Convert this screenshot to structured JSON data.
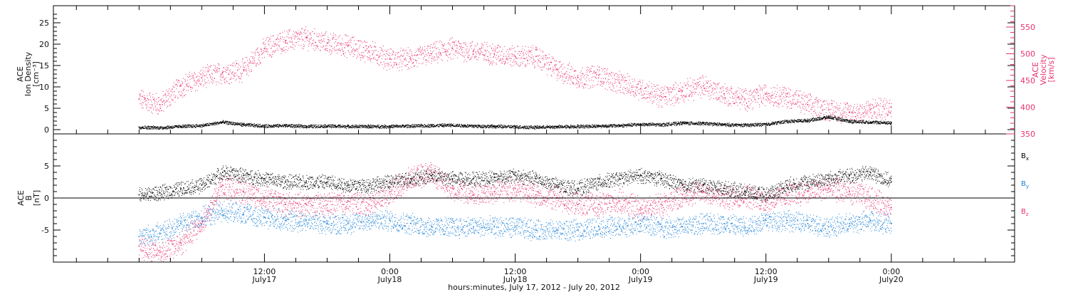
{
  "figure": {
    "xlabel": "hours:minutes, July 17, 2012 - July 20, 2012",
    "xticks": [
      {
        "hours": 12,
        "time": "12:00",
        "date": "July17"
      },
      {
        "hours": 24,
        "time": "0:00",
        "date": "July18"
      },
      {
        "hours": 36,
        "time": "12:00",
        "date": "July18"
      },
      {
        "hours": 48,
        "time": "0:00",
        "date": "July19"
      },
      {
        "hours": 60,
        "time": "12:00",
        "date": "July19"
      },
      {
        "hours": 72,
        "time": "0:00",
        "date": "July20"
      }
    ]
  },
  "chart_data": [
    {
      "type": "scatter",
      "title": "",
      "xlabel": "hours:minutes, July 17, 2012 - July 20, 2012",
      "ylabel": [
        "ACE",
        "Ion Density",
        "[cm⁻³]"
      ],
      "ylim": [
        -1,
        29
      ],
      "yticks": [
        0,
        5,
        10,
        15,
        20,
        25
      ],
      "y2label": [
        "ACE",
        "Velocity",
        "[km/s]"
      ],
      "y2lim": [
        350,
        590
      ],
      "y2ticks": [
        350,
        400,
        450,
        500,
        550
      ],
      "x_unit": "hours since July 17, 2012 00:00",
      "series": [
        {
          "name": "Ion Density",
          "axis": "left",
          "color": "#000000",
          "x": [
            0,
            2,
            4,
            6,
            8,
            10,
            12,
            14,
            16,
            18,
            20,
            22,
            24,
            26,
            28,
            30,
            32,
            34,
            36,
            38,
            40,
            42,
            44,
            46,
            48,
            50,
            52,
            54,
            56,
            58,
            60,
            62,
            64,
            66,
            68,
            70,
            72
          ],
          "y": [
            0.6,
            0.5,
            0.8,
            1.0,
            1.8,
            1.2,
            0.9,
            1.0,
            0.8,
            0.9,
            0.8,
            0.8,
            0.8,
            0.9,
            1.0,
            1.1,
            0.9,
            0.8,
            0.7,
            0.6,
            0.7,
            0.8,
            0.9,
            1.0,
            1.3,
            1.2,
            1.6,
            1.5,
            1.2,
            1.1,
            1.3,
            2.0,
            2.2,
            3.0,
            2.0,
            1.8,
            1.6
          ]
        },
        {
          "name": "Velocity",
          "axis": "right",
          "color": "#e8316c",
          "x": [
            0,
            2,
            4,
            6,
            8,
            10,
            12,
            14,
            16,
            18,
            20,
            22,
            24,
            26,
            28,
            30,
            32,
            34,
            36,
            38,
            40,
            42,
            44,
            46,
            48,
            50,
            52,
            54,
            56,
            58,
            60,
            62,
            64,
            66,
            68,
            70,
            72
          ],
          "y": [
            415,
            405,
            440,
            455,
            465,
            470,
            510,
            525,
            530,
            520,
            515,
            505,
            490,
            490,
            500,
            510,
            505,
            500,
            495,
            495,
            470,
            455,
            460,
            445,
            435,
            420,
            430,
            440,
            425,
            415,
            425,
            420,
            405,
            395,
            390,
            395,
            400
          ]
        }
      ]
    },
    {
      "type": "scatter",
      "title": "",
      "xlabel": "hours:minutes, July 17, 2012 - July 20, 2012",
      "ylabel": [
        "ACE",
        "B",
        "[nT]"
      ],
      "ylim": [
        -10,
        10
      ],
      "yticks": [
        -5,
        0,
        5
      ],
      "zero_line": true,
      "legend_position": "right",
      "series": [
        {
          "name": "B",
          "subscript": "x",
          "color": "#000000",
          "x": [
            0,
            2,
            4,
            6,
            8,
            10,
            12,
            14,
            16,
            18,
            20,
            22,
            24,
            26,
            28,
            30,
            32,
            34,
            36,
            38,
            40,
            42,
            44,
            46,
            48,
            50,
            52,
            54,
            56,
            58,
            60,
            62,
            64,
            66,
            68,
            70,
            72
          ],
          "y": [
            0.5,
            0.8,
            1.5,
            2.0,
            4.0,
            3.5,
            3.0,
            2.5,
            2.5,
            2.5,
            2.0,
            2.0,
            2.5,
            3.0,
            3.5,
            3.0,
            3.0,
            3.2,
            3.5,
            3.0,
            2.0,
            1.5,
            2.5,
            3.0,
            3.5,
            3.0,
            2.0,
            2.0,
            1.5,
            1.0,
            0.5,
            2.0,
            2.5,
            3.0,
            3.5,
            4.0,
            2.5
          ]
        },
        {
          "name": "B",
          "subscript": "y",
          "color": "#1a7fd6",
          "x": [
            0,
            2,
            4,
            6,
            8,
            10,
            12,
            14,
            16,
            18,
            20,
            22,
            24,
            26,
            28,
            30,
            32,
            34,
            36,
            38,
            40,
            42,
            44,
            46,
            48,
            50,
            52,
            54,
            56,
            58,
            60,
            62,
            64,
            66,
            68,
            70,
            72
          ],
          "y": [
            -6.0,
            -5.5,
            -4.0,
            -3.0,
            -2.0,
            -2.5,
            -3.0,
            -3.5,
            -3.5,
            -4.0,
            -4.0,
            -3.5,
            -3.5,
            -4.0,
            -4.5,
            -4.5,
            -4.5,
            -4.5,
            -4.5,
            -5.0,
            -5.0,
            -5.0,
            -4.5,
            -4.5,
            -4.0,
            -4.5,
            -4.5,
            -4.0,
            -4.0,
            -4.5,
            -3.5,
            -3.5,
            -4.0,
            -4.5,
            -4.0,
            -3.5,
            -4.0
          ]
        },
        {
          "name": "B",
          "subscript": "z",
          "color": "#e8316c",
          "x": [
            0,
            2,
            4,
            6,
            8,
            10,
            12,
            14,
            16,
            18,
            20,
            22,
            24,
            26,
            28,
            30,
            32,
            34,
            36,
            38,
            40,
            42,
            44,
            46,
            48,
            50,
            52,
            54,
            56,
            58,
            60,
            62,
            64,
            66,
            68,
            70,
            72
          ],
          "y": [
            -7.5,
            -8.5,
            -7.0,
            -4.0,
            2.0,
            1.0,
            0.0,
            -1.0,
            -1.0,
            -1.0,
            -0.5,
            -1.0,
            1.0,
            3.0,
            4.0,
            1.5,
            0.5,
            1.0,
            1.5,
            0.5,
            0.0,
            -1.0,
            -1.0,
            -0.5,
            -1.5,
            -1.0,
            0.5,
            1.0,
            0.0,
            0.5,
            -0.5,
            0.5,
            1.0,
            1.5,
            1.0,
            0.0,
            -1.5
          ]
        }
      ]
    }
  ]
}
